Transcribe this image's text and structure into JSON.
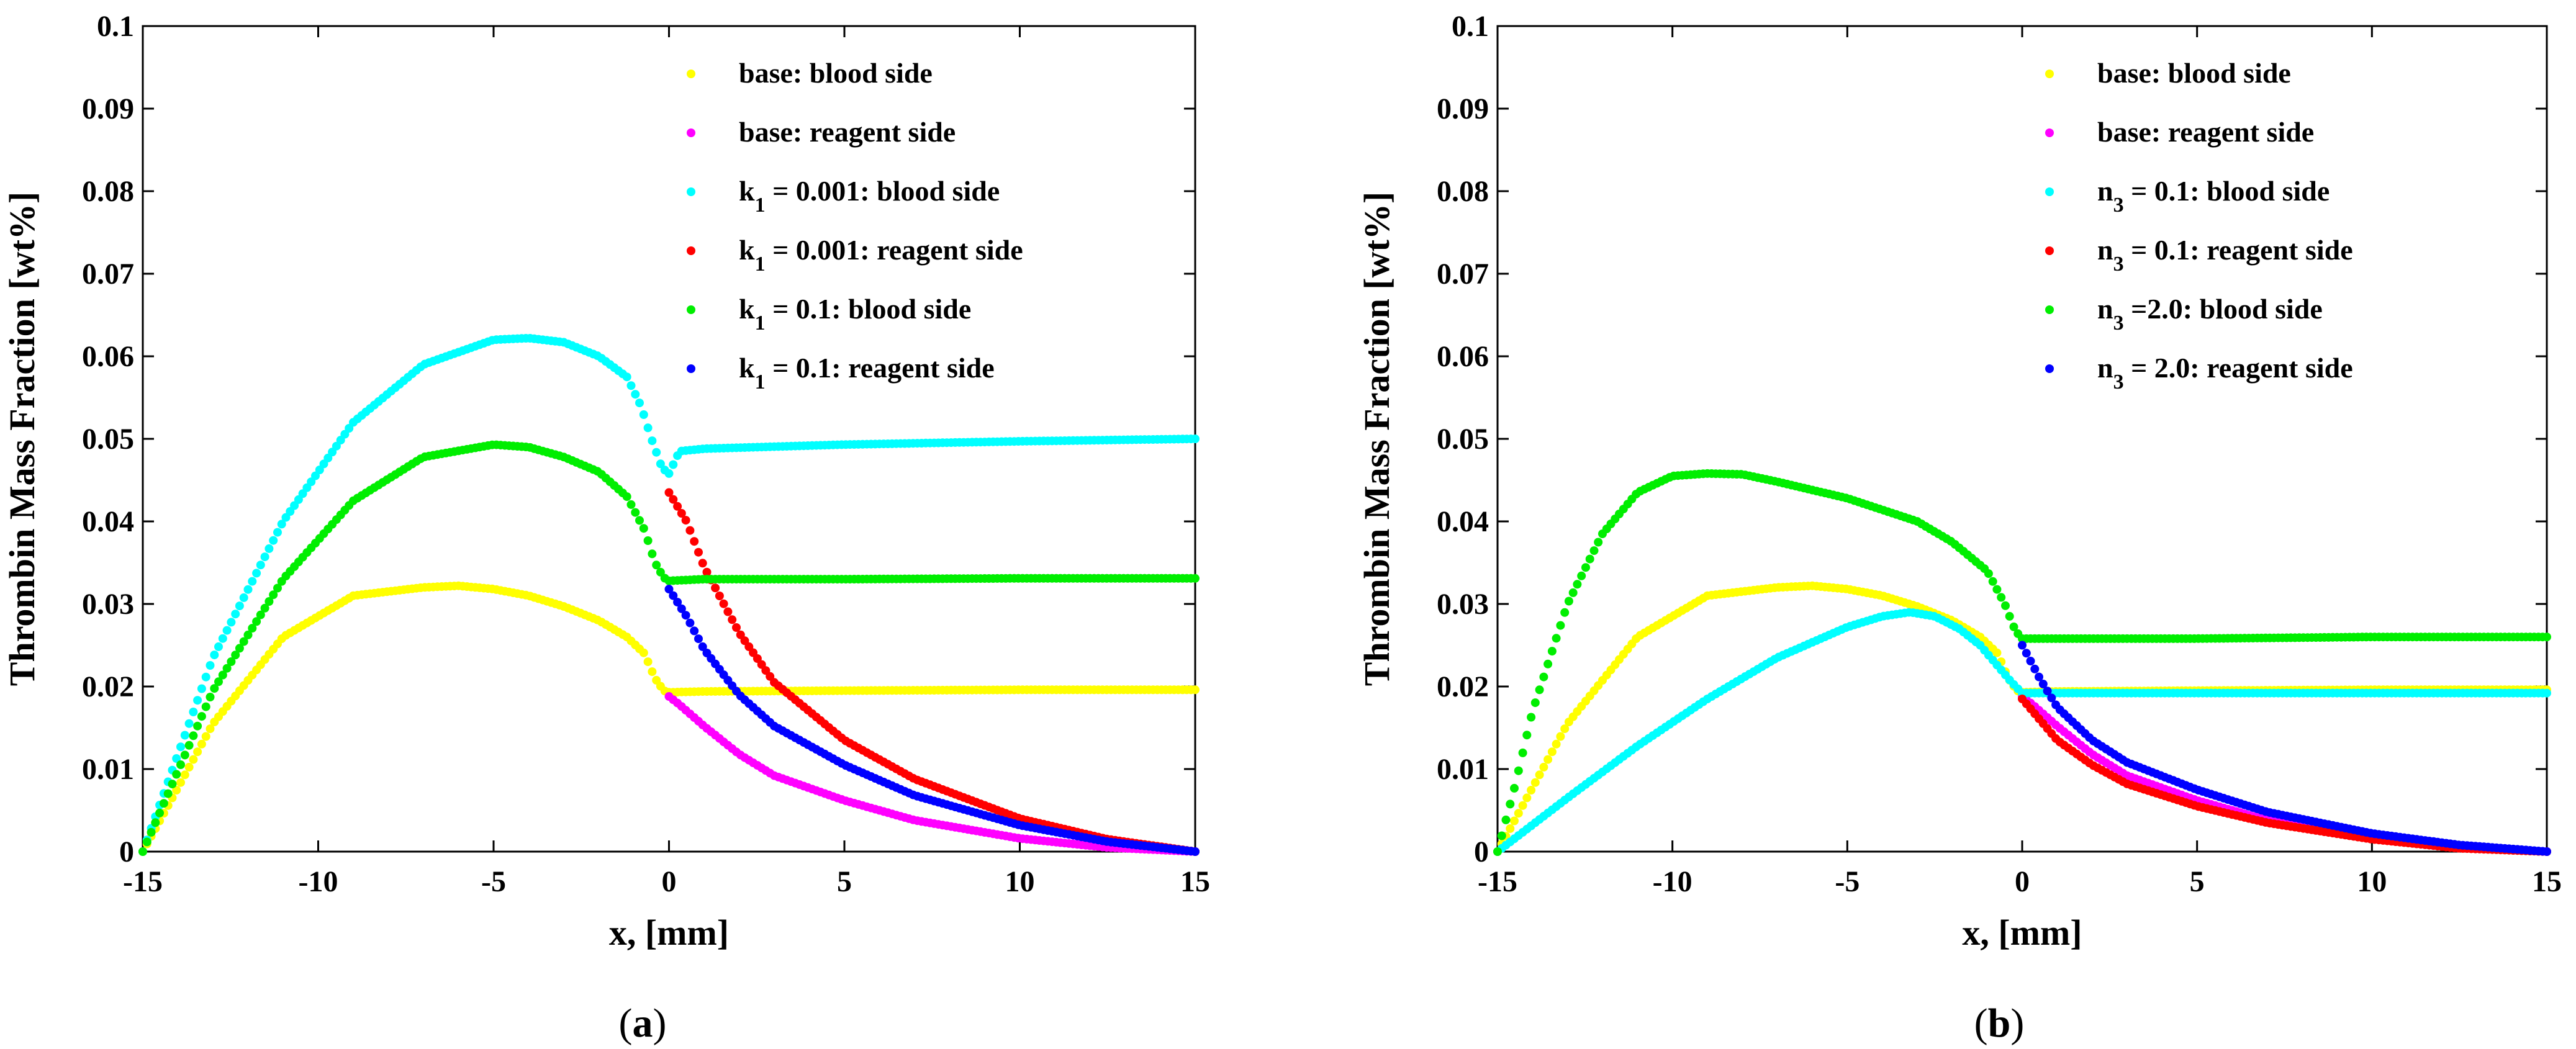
{
  "chart_data": [
    {
      "type": "scatter",
      "panel_label": {
        "open": "(",
        "letter": "a",
        "close": ")"
      },
      "xlabel": "x, [mm]",
      "ylabel": "Thrombin Mass Fraction [wt%]",
      "xlim": [
        -15,
        15
      ],
      "ylim": [
        0,
        0.1
      ],
      "x_ticks": [
        "-15",
        "-10",
        "-5",
        "0",
        "5",
        "10",
        "15"
      ],
      "y_ticks": [
        "0",
        "0.01",
        "0.02",
        "0.03",
        "0.04",
        "0.05",
        "0.06",
        "0.07",
        "0.08",
        "0.09",
        "0.1"
      ],
      "legend_position": "top-right",
      "series": [
        {
          "name": "base: blood side",
          "legend": {
            "pre": "base: blood side",
            "sub": "",
            "post": ""
          },
          "color": "#ffff00",
          "side": "blood",
          "points": [
            [
              -15,
              0
            ],
            [
              -13,
              0.0155
            ],
            [
              -11,
              0.026
            ],
            [
              -9,
              0.031
            ],
            [
              -7,
              0.032
            ],
            [
              -6,
              0.0322
            ],
            [
              -5,
              0.0318
            ],
            [
              -4,
              0.031
            ],
            [
              -3,
              0.0297
            ],
            [
              -2,
              0.028
            ],
            [
              -1.2,
              0.026
            ],
            [
              -0.7,
              0.024
            ],
            [
              -0.4,
              0.021
            ],
            [
              -0.15,
              0.0195
            ],
            [
              0,
              0.0193
            ],
            [
              1,
              0.0194
            ],
            [
              5,
              0.0195
            ],
            [
              10,
              0.0196
            ],
            [
              15,
              0.0196
            ]
          ]
        },
        {
          "name": "base: reagent side",
          "legend": {
            "pre": "base: reagent side",
            "sub": "",
            "post": ""
          },
          "color": "#ff00ff",
          "side": "reagent",
          "points": [
            [
              0,
              0.0188
            ],
            [
              0.3,
              0.0178
            ],
            [
              1,
              0.0152
            ],
            [
              2,
              0.0118
            ],
            [
              3,
              0.0092
            ],
            [
              5,
              0.0062
            ],
            [
              7,
              0.0038
            ],
            [
              10,
              0.0016
            ],
            [
              12.5,
              0.0005
            ],
            [
              15,
              0
            ]
          ]
        },
        {
          "name": "k1 = 0.001: blood side",
          "legend": {
            "pre": "k",
            "sub": "1",
            "post": " = 0.001: blood side"
          },
          "color": "#00ffff",
          "side": "blood",
          "points": [
            [
              -15,
              0
            ],
            [
              -13,
              0.0235
            ],
            [
              -11,
              0.04
            ],
            [
              -9,
              0.052
            ],
            [
              -7,
              0.059
            ],
            [
              -5,
              0.062
            ],
            [
              -4,
              0.0622
            ],
            [
              -3,
              0.0617
            ],
            [
              -2,
              0.06
            ],
            [
              -1.2,
              0.0575
            ],
            [
              -0.8,
              0.054
            ],
            [
              -0.5,
              0.05
            ],
            [
              -0.2,
              0.0465
            ],
            [
              0,
              0.0458
            ],
            [
              0.3,
              0.0485
            ],
            [
              1,
              0.0488
            ],
            [
              5,
              0.0493
            ],
            [
              10,
              0.0497
            ],
            [
              15,
              0.05
            ]
          ]
        },
        {
          "name": "k1 = 0.001: reagent side",
          "legend": {
            "pre": "k",
            "sub": "1",
            "post": " = 0.001: reagent side"
          },
          "color": "#ff0000",
          "side": "reagent",
          "points": [
            [
              0,
              0.0435
            ],
            [
              0.5,
              0.04
            ],
            [
              1,
              0.0345
            ],
            [
              2,
              0.0265
            ],
            [
              3,
              0.0205
            ],
            [
              5,
              0.0135
            ],
            [
              7,
              0.0088
            ],
            [
              10,
              0.004
            ],
            [
              12.5,
              0.0015
            ],
            [
              15,
              0
            ]
          ]
        },
        {
          "name": "k1 = 0.1: blood side",
          "legend": {
            "pre": "k",
            "sub": "1",
            "post": " = 0.1: blood side"
          },
          "color": "#00ee00",
          "side": "blood",
          "points": [
            [
              -15,
              0
            ],
            [
              -13,
              0.0195
            ],
            [
              -11,
              0.033
            ],
            [
              -9,
              0.0425
            ],
            [
              -7,
              0.0478
            ],
            [
              -5,
              0.0493
            ],
            [
              -4,
              0.049
            ],
            [
              -3,
              0.0478
            ],
            [
              -2,
              0.046
            ],
            [
              -1.2,
              0.043
            ],
            [
              -0.7,
              0.039
            ],
            [
              -0.4,
              0.035
            ],
            [
              -0.15,
              0.0332
            ],
            [
              0,
              0.0328
            ],
            [
              1,
              0.033
            ],
            [
              5,
              0.033
            ],
            [
              10,
              0.0331
            ],
            [
              15,
              0.0331
            ]
          ]
        },
        {
          "name": "k1 = 0.1: reagent side",
          "legend": {
            "pre": "k",
            "sub": "1",
            "post": " = 0.1: reagent side"
          },
          "color": "#0000ff",
          "side": "reagent",
          "points": [
            [
              0,
              0.0318
            ],
            [
              0.5,
              0.0285
            ],
            [
              1,
              0.0245
            ],
            [
              2,
              0.019
            ],
            [
              3,
              0.0152
            ],
            [
              5,
              0.0105
            ],
            [
              7,
              0.0068
            ],
            [
              10,
              0.0032
            ],
            [
              12.5,
              0.0012
            ],
            [
              15,
              0
            ]
          ]
        }
      ]
    },
    {
      "type": "scatter",
      "panel_label": {
        "open": "(",
        "letter": "b",
        "close": ")"
      },
      "xlabel": "x, [mm]",
      "ylabel": "Thrombin Mass Fraction [wt%]",
      "xlim": [
        -15,
        15
      ],
      "ylim": [
        0,
        0.1
      ],
      "x_ticks": [
        "-15",
        "-10",
        "-5",
        "0",
        "5",
        "10",
        "15"
      ],
      "y_ticks": [
        "0",
        "0.01",
        "0.02",
        "0.03",
        "0.04",
        "0.05",
        "0.06",
        "0.07",
        "0.08",
        "0.09",
        "0.1"
      ],
      "legend_position": "top-right",
      "series": [
        {
          "name": "base: blood side",
          "legend": {
            "pre": "base: blood side",
            "sub": "",
            "post": ""
          },
          "color": "#ffff00",
          "side": "blood",
          "points": [
            [
              -15,
              0
            ],
            [
              -13,
              0.0155
            ],
            [
              -11,
              0.026
            ],
            [
              -9,
              0.031
            ],
            [
              -7,
              0.032
            ],
            [
              -6,
              0.0322
            ],
            [
              -5,
              0.0318
            ],
            [
              -4,
              0.031
            ],
            [
              -3,
              0.0297
            ],
            [
              -2,
              0.028
            ],
            [
              -1.2,
              0.026
            ],
            [
              -0.7,
              0.024
            ],
            [
              -0.4,
              0.021
            ],
            [
              -0.15,
              0.0195
            ],
            [
              0,
              0.0193
            ],
            [
              1,
              0.0194
            ],
            [
              5,
              0.0195
            ],
            [
              10,
              0.0196
            ],
            [
              15,
              0.0196
            ]
          ]
        },
        {
          "name": "base: reagent side",
          "legend": {
            "pre": "base: reagent side",
            "sub": "",
            "post": ""
          },
          "color": "#ff00ff",
          "side": "reagent",
          "points": [
            [
              0,
              0.0188
            ],
            [
              0.3,
              0.0178
            ],
            [
              1,
              0.0152
            ],
            [
              2,
              0.0118
            ],
            [
              3,
              0.0092
            ],
            [
              5,
              0.0062
            ],
            [
              7,
              0.0038
            ],
            [
              10,
              0.0016
            ],
            [
              12.5,
              0.0005
            ],
            [
              15,
              0
            ]
          ]
        },
        {
          "name": "n3 = 0.1: blood side",
          "legend": {
            "pre": "n",
            "sub": "3",
            "post": " = 0.1: blood side"
          },
          "color": "#00ffff",
          "side": "blood",
          "points": [
            [
              -15,
              0
            ],
            [
              -13,
              0.0065
            ],
            [
              -11,
              0.0128
            ],
            [
              -9,
              0.0185
            ],
            [
              -7,
              0.0235
            ],
            [
              -5,
              0.0272
            ],
            [
              -4,
              0.0285
            ],
            [
              -3.2,
              0.029
            ],
            [
              -2.5,
              0.0285
            ],
            [
              -1.8,
              0.027
            ],
            [
              -1.2,
              0.025
            ],
            [
              -0.7,
              0.0225
            ],
            [
              -0.3,
              0.0205
            ],
            [
              0,
              0.0192
            ],
            [
              1,
              0.0192
            ],
            [
              5,
              0.0192
            ],
            [
              10,
              0.0192
            ],
            [
              15,
              0.0192
            ]
          ]
        },
        {
          "name": "n3 = 0.1: reagent side",
          "legend": {
            "pre": "n",
            "sub": "3",
            "post": " = 0.1: reagent side"
          },
          "color": "#ff0000",
          "side": "reagent",
          "points": [
            [
              0,
              0.0185
            ],
            [
              0.5,
              0.016
            ],
            [
              1,
              0.0135
            ],
            [
              2,
              0.0105
            ],
            [
              3,
              0.0082
            ],
            [
              5,
              0.0055
            ],
            [
              7,
              0.0035
            ],
            [
              10,
              0.0015
            ],
            [
              12.5,
              0.0004
            ],
            [
              15,
              0
            ]
          ]
        },
        {
          "name": "n3 =2.0: blood side",
          "legend": {
            "pre": "n",
            "sub": "3",
            "post": " =2.0: blood side"
          },
          "color": "#00ee00",
          "side": "blood",
          "points": [
            [
              -15,
              0
            ],
            [
              -14.5,
              0.008
            ],
            [
              -14,
              0.017
            ],
            [
              -13,
              0.03
            ],
            [
              -12,
              0.0385
            ],
            [
              -11,
              0.0435
            ],
            [
              -10,
              0.0455
            ],
            [
              -9,
              0.0458
            ],
            [
              -8,
              0.0457
            ],
            [
              -7,
              0.0448
            ],
            [
              -5,
              0.0428
            ],
            [
              -3,
              0.04
            ],
            [
              -2,
              0.0375
            ],
            [
              -1,
              0.034
            ],
            [
              -0.5,
              0.03
            ],
            [
              -0.2,
              0.0268
            ],
            [
              0,
              0.0258
            ],
            [
              1,
              0.0258
            ],
            [
              5,
              0.0258
            ],
            [
              10,
              0.026
            ],
            [
              15,
              0.026
            ]
          ]
        },
        {
          "name": "n3 = 2.0: reagent side",
          "legend": {
            "pre": "n",
            "sub": "3",
            "post": " = 2.0: reagent side"
          },
          "color": "#0000ff",
          "side": "reagent",
          "points": [
            [
              0,
              0.025
            ],
            [
              0.5,
              0.021
            ],
            [
              1,
              0.0175
            ],
            [
              2,
              0.0135
            ],
            [
              3,
              0.0108
            ],
            [
              5,
              0.0075
            ],
            [
              7,
              0.0048
            ],
            [
              10,
              0.0022
            ],
            [
              12.5,
              0.0008
            ],
            [
              15,
              0
            ]
          ]
        }
      ]
    }
  ]
}
